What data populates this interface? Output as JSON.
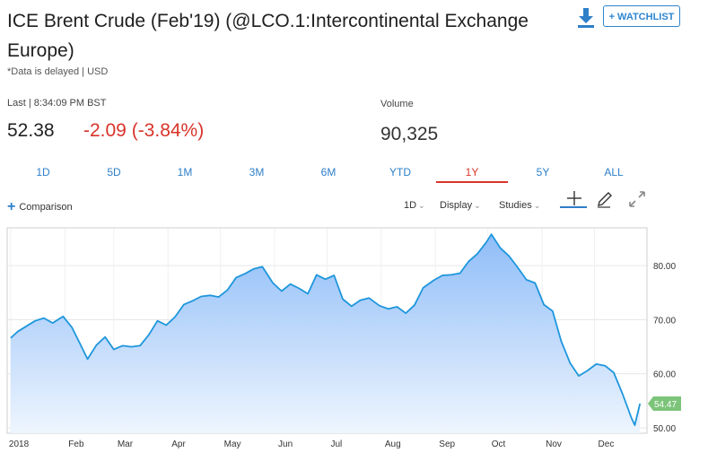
{
  "header": {
    "title": "ICE Brent Crude (Feb'19) (@LCO.1:Intercontinental Exchange Europe)",
    "note": "*Data is delayed | USD",
    "download_icon": "download-icon",
    "watchlist_label": "+ WATCHLIST"
  },
  "quote": {
    "last_label": "Last | 8:34:09 PM BST",
    "last_price": "52.38",
    "change": "-2.09 (-3.84%)",
    "volume_label": "Volume",
    "volume": "90,325"
  },
  "range_tabs": [
    {
      "label": "1D"
    },
    {
      "label": "5D"
    },
    {
      "label": "1M"
    },
    {
      "label": "3M"
    },
    {
      "label": "6M"
    },
    {
      "label": "YTD"
    },
    {
      "label": "1Y",
      "active": true
    },
    {
      "label": "5Y"
    },
    {
      "label": "ALL"
    }
  ],
  "toolbar": {
    "comparison_label": "Comparison",
    "interval_label": "1D",
    "display_label": "Display",
    "studies_label": "Studies",
    "icons": [
      "crosshair-icon",
      "draw-pencil-icon",
      "fullscreen-icon"
    ]
  },
  "colors": {
    "line": "#1e96dc",
    "fill_top": "#8fbdf8",
    "fill_bottom": "#eef5fe",
    "price_tag": "#7cc47a",
    "accent": "#2d7fc9",
    "negative": "#d8332a"
  },
  "chart_data": {
    "type": "area",
    "x_ticks": [
      "2018",
      "Feb",
      "Mar",
      "Apr",
      "May",
      "Jun",
      "Jul",
      "Aug",
      "Sep",
      "Oct",
      "Nov",
      "Dec"
    ],
    "y_ticks": [
      "50.00",
      "60.00",
      "70.00",
      "80.00"
    ],
    "ylim": [
      49,
      87
    ],
    "last_value_label": "54.47",
    "last_value": 54.47,
    "grid": true,
    "series": [
      {
        "x": [
          "2018-01-01",
          "2018-01-05",
          "2018-01-10",
          "2018-01-15",
          "2018-01-20",
          "2018-01-25",
          "2018-01-31",
          "2018-02-05",
          "2018-02-09",
          "2018-02-14",
          "2018-02-19",
          "2018-02-24",
          "2018-03-01",
          "2018-03-06",
          "2018-03-11",
          "2018-03-16",
          "2018-03-21",
          "2018-03-26",
          "2018-03-31",
          "2018-04-05",
          "2018-04-10",
          "2018-04-15",
          "2018-04-20",
          "2018-04-25",
          "2018-04-30",
          "2018-05-05",
          "2018-05-10",
          "2018-05-15",
          "2018-05-20",
          "2018-05-25",
          "2018-05-31",
          "2018-06-05",
          "2018-06-10",
          "2018-06-15",
          "2018-06-20",
          "2018-06-25",
          "2018-06-30",
          "2018-07-05",
          "2018-07-10",
          "2018-07-15",
          "2018-07-20",
          "2018-07-25",
          "2018-07-31",
          "2018-08-05",
          "2018-08-10",
          "2018-08-15",
          "2018-08-20",
          "2018-08-25",
          "2018-08-31",
          "2018-09-05",
          "2018-09-10",
          "2018-09-15",
          "2018-09-20",
          "2018-09-25",
          "2018-09-30",
          "2018-10-03",
          "2018-10-08",
          "2018-10-13",
          "2018-10-18",
          "2018-10-23",
          "2018-10-28",
          "2018-11-02",
          "2018-11-07",
          "2018-11-12",
          "2018-11-17",
          "2018-11-22",
          "2018-11-27",
          "2018-12-02",
          "2018-12-07",
          "2018-12-12",
          "2018-12-17",
          "2018-12-22",
          "2018-12-24",
          "2018-12-27"
        ],
        "y": [
          66.6,
          67.8,
          68.8,
          69.8,
          70.3,
          69.4,
          70.6,
          68.6,
          66.0,
          62.7,
          65.3,
          66.8,
          64.5,
          65.2,
          65.0,
          65.2,
          67.2,
          69.8,
          69.0,
          70.5,
          72.8,
          73.5,
          74.3,
          74.5,
          74.2,
          75.5,
          77.8,
          78.5,
          79.4,
          79.8,
          76.8,
          75.3,
          76.6,
          75.8,
          74.8,
          78.3,
          77.5,
          78.2,
          73.8,
          72.5,
          73.6,
          74.0,
          72.6,
          72.0,
          72.4,
          71.2,
          72.7,
          75.9,
          77.3,
          78.2,
          78.3,
          78.6,
          80.8,
          82.2,
          84.3,
          85.8,
          83.3,
          81.8,
          79.7,
          77.4,
          76.8,
          72.8,
          71.6,
          66.0,
          62.0,
          59.6,
          60.6,
          61.8,
          61.5,
          60.2,
          56.3,
          51.9,
          50.5,
          54.47
        ]
      }
    ]
  }
}
